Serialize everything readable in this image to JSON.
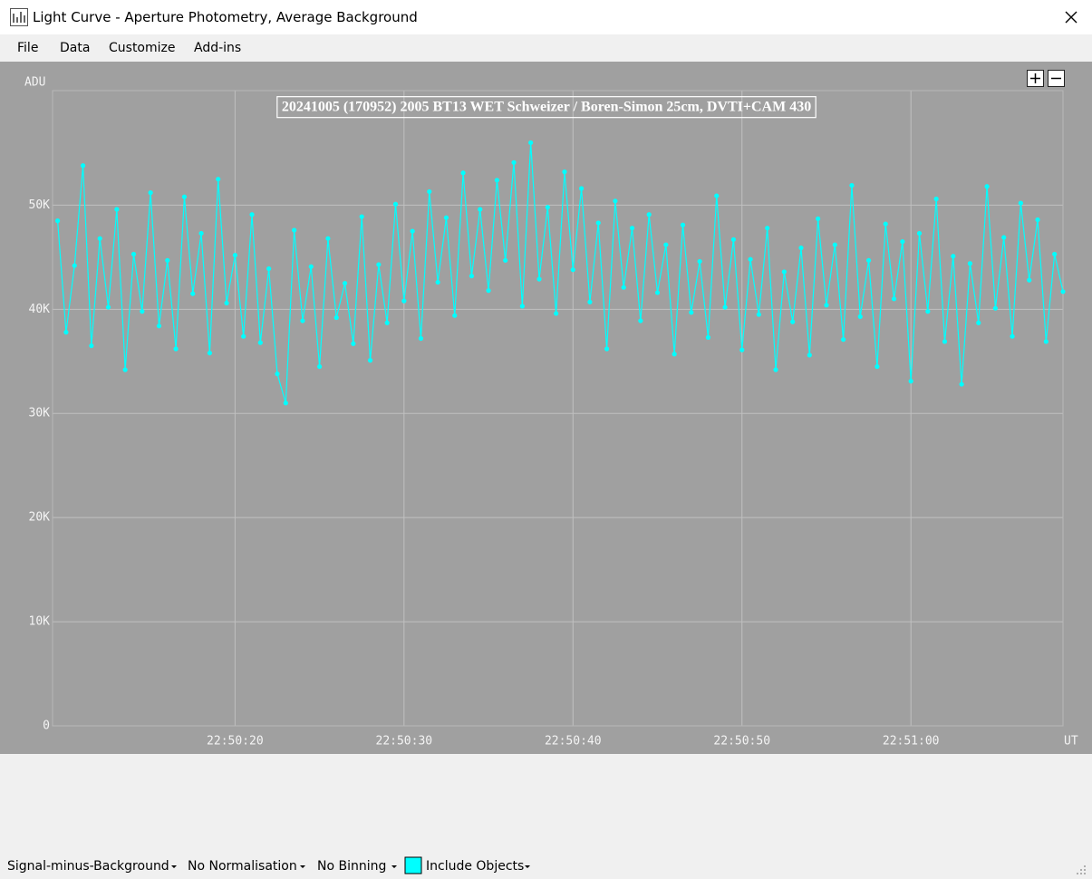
{
  "window": {
    "title": "Light Curve - Aperture Photometry, Average Background"
  },
  "menu": [
    "File",
    "Data",
    "Customize",
    "Add-ins"
  ],
  "status_bar": [
    "Signal-minus-Background",
    "No Normalisation",
    "No Binning",
    "Include Objects"
  ],
  "chart_data": {
    "type": "line",
    "title": "20241005 (170952) 2005 BT13 WET Schweizer / Boren-Simon 25cm, DVTI+CAM 430",
    "y_label": "ADU",
    "x_label": "UT",
    "color": "#00ffff",
    "grid": true,
    "xlim": [
      "22:50:09.2",
      "22:51:09.0"
    ],
    "xticks": [
      "22:50:20",
      "22:50:30",
      "22:50:40",
      "22:50:50",
      "22:51:00"
    ],
    "ylim": [
      0,
      61000
    ],
    "yticks": [
      0,
      {
        "value": 10000,
        "label": "10K"
      },
      {
        "value": 20000,
        "label": "20K"
      },
      {
        "value": 30000,
        "label": "30K"
      },
      {
        "value": 40000,
        "label": "40K"
      },
      {
        "value": 50000,
        "label": "50K"
      }
    ],
    "x": [
      "22:50:09.5",
      "22:50:10.0",
      "22:50:10.5",
      "22:50:11.0",
      "22:50:11.5",
      "22:50:12.0",
      "22:50:12.5",
      "22:50:13.0",
      "22:50:13.5",
      "22:50:14.0",
      "22:50:14.5",
      "22:50:15.0",
      "22:50:15.5",
      "22:50:16.0",
      "22:50:16.5",
      "22:50:17.0",
      "22:50:17.5",
      "22:50:18.0",
      "22:50:18.5",
      "22:50:19.0",
      "22:50:19.5",
      "22:50:20.0",
      "22:50:20.5",
      "22:50:21.0",
      "22:50:21.5",
      "22:50:22.0",
      "22:50:22.5",
      "22:50:23.0",
      "22:50:23.5",
      "22:50:24.0",
      "22:50:24.5",
      "22:50:25.0",
      "22:50:25.5",
      "22:50:26.0",
      "22:50:26.5",
      "22:50:27.0",
      "22:50:27.5",
      "22:50:28.0",
      "22:50:28.5",
      "22:50:29.0",
      "22:50:29.5",
      "22:50:30.0",
      "22:50:30.5",
      "22:50:31.0",
      "22:50:31.5",
      "22:50:32.0",
      "22:50:32.5",
      "22:50:33.0",
      "22:50:33.5",
      "22:50:34.0",
      "22:50:34.5",
      "22:50:35.0",
      "22:50:35.5",
      "22:50:36.0",
      "22:50:36.5",
      "22:50:37.0",
      "22:50:37.5",
      "22:50:38.0",
      "22:50:38.5",
      "22:50:39.0",
      "22:50:39.5",
      "22:50:40.0",
      "22:50:40.5",
      "22:50:41.0",
      "22:50:41.5",
      "22:50:42.0",
      "22:50:42.5",
      "22:50:43.0",
      "22:50:43.5",
      "22:50:44.0",
      "22:50:44.5",
      "22:50:45.0",
      "22:50:45.5",
      "22:50:46.0",
      "22:50:46.5",
      "22:50:47.0",
      "22:50:47.5",
      "22:50:48.0",
      "22:50:48.5",
      "22:50:49.0",
      "22:50:49.5",
      "22:50:50.0",
      "22:50:50.5",
      "22:50:51.0",
      "22:50:51.5",
      "22:50:52.0",
      "22:50:52.5",
      "22:50:53.0",
      "22:50:53.5",
      "22:50:54.0",
      "22:50:54.5",
      "22:50:55.0",
      "22:50:55.5",
      "22:50:56.0",
      "22:50:56.5",
      "22:50:57.0",
      "22:50:57.5",
      "22:50:58.0",
      "22:50:58.5",
      "22:50:59.0",
      "22:50:59.5",
      "22:51:00.0",
      "22:51:00.5",
      "22:51:01.0",
      "22:51:01.5",
      "22:51:02.0",
      "22:51:02.5",
      "22:51:03.0",
      "22:51:03.5",
      "22:51:04.0",
      "22:51:04.5",
      "22:51:05.0",
      "22:51:05.5",
      "22:51:06.0",
      "22:51:06.5",
      "22:51:07.0",
      "22:51:07.5",
      "22:51:08.0",
      "22:51:08.5",
      "22:51:09.0"
    ],
    "values": [
      48500,
      37800,
      44200,
      53800,
      36500,
      46800,
      40200,
      49600,
      34200,
      45300,
      39800,
      51200,
      38400,
      44700,
      36200,
      50800,
      41500,
      47300,
      35800,
      52500,
      40600,
      45200,
      37400,
      49100,
      36800,
      43900,
      33800,
      31000,
      47600,
      38900,
      44100,
      34500,
      46800,
      39200,
      42500,
      36700,
      48900,
      35100,
      44300,
      38700,
      50100,
      40800,
      47500,
      37200,
      51300,
      42600,
      48800,
      39400,
      53100,
      43200,
      49600,
      41800,
      52400,
      44700,
      54100,
      40300,
      56000,
      42900,
      49800,
      39600,
      53200,
      43800,
      51600,
      40700,
      48300,
      36200,
      50400,
      42100,
      47800,
      38900,
      49100,
      41600,
      46200,
      35700,
      48100,
      39700,
      44600,
      37300,
      50900,
      40200,
      46700,
      36100,
      44800,
      39500,
      47800,
      34200,
      43600,
      38800,
      45900,
      35600,
      48700,
      40400,
      46200,
      37100,
      51900,
      39300,
      44700,
      34500,
      48200,
      41000,
      46500,
      33100,
      47300,
      39800,
      50600,
      36900,
      45100,
      32800,
      44400,
      38700,
      51800,
      40100,
      46900,
      37400,
      50200,
      42800,
      48600,
      36900,
      45300,
      41700
    ]
  }
}
